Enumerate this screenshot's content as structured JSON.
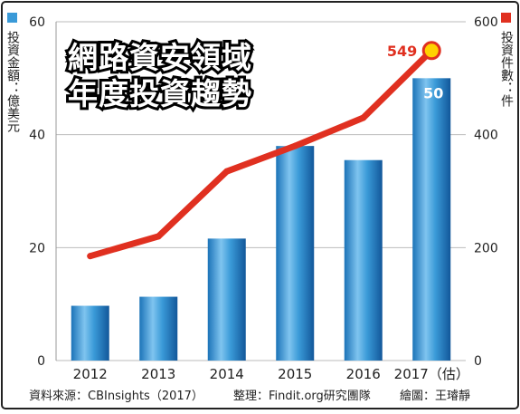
{
  "title_lines": [
    "網路資安領域",
    "年度投資趨勢"
  ],
  "left_axis_label": "投資金額：億美元",
  "right_axis_label": "投資件數：件",
  "footer": {
    "source": "資料來源：CBInsights（2017）",
    "compiled": "整理：Findit.org研究團隊",
    "drawn": "繪圖：王璿靜"
  },
  "colors": {
    "bar": "#3a9ad8",
    "line": "#e03020",
    "highlight_dot": "#ffd200",
    "legend_bar": "#3a9ad8",
    "legend_line": "#e03020"
  },
  "chart_data": {
    "type": "bar",
    "categories": [
      "2012",
      "2013",
      "2014",
      "2015",
      "2016",
      "2017（估）"
    ],
    "series": [
      {
        "values": [
          9.7,
          11.3,
          21.6,
          38,
          35.5,
          50
        ],
        "axis": "left",
        "type": "bar"
      },
      {
        "values": [
          185,
          220,
          335,
          380,
          430,
          549
        ],
        "axis": "right",
        "type": "line"
      }
    ],
    "y_left": {
      "lim": [
        0,
        60
      ],
      "ticks": [
        "0",
        "20",
        "40",
        "60"
      ]
    },
    "y_right": {
      "lim": [
        0,
        600
      ],
      "ticks": [
        "0",
        "200",
        "400",
        "600"
      ]
    },
    "data_labels": {
      "bar_last": "50",
      "line_last": "549"
    },
    "grid": true
  }
}
